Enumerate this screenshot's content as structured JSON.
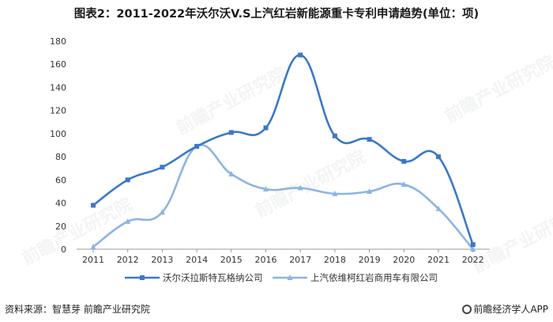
{
  "title": "图表2：2011-2022年沃尔沃V.S上汽红岩新能源重卡专利申请趋势(单位：项)",
  "source": "资料来源：智慧芽 前瞻产业研究院",
  "brand": "前瞻经济学人APP",
  "watermark": "前瞻产业研究院",
  "colors": {
    "series1": "#3a78c7",
    "series2": "#8db4e2",
    "axis": "#999999",
    "grid": "#d9d9d9"
  },
  "chart_data": {
    "type": "line",
    "smooth": true,
    "title": "图表2：2011-2022年沃尔沃V.S上汽红岩新能源重卡专利申请趋势(单位：项)",
    "x": [
      "2011",
      "2012",
      "2013",
      "2014",
      "2015",
      "2016",
      "2017",
      "2018",
      "2019",
      "2020",
      "2021",
      "2022"
    ],
    "ylim": [
      0,
      180
    ],
    "yticks": [
      0,
      20,
      40,
      60,
      80,
      100,
      120,
      140,
      160,
      180
    ],
    "grid": false,
    "legend": "bottom",
    "series": [
      {
        "name": "沃尔沃拉斯特瓦格纳公司",
        "marker": "square",
        "values": [
          38,
          60,
          71,
          89,
          101,
          105,
          168,
          98,
          95,
          76,
          80,
          4
        ]
      },
      {
        "name": "上汽依维柯红岩商用车有限公司",
        "marker": "triangle",
        "values": [
          2,
          24,
          32,
          89,
          65,
          52,
          53,
          48,
          50,
          56,
          35,
          0
        ]
      }
    ]
  }
}
